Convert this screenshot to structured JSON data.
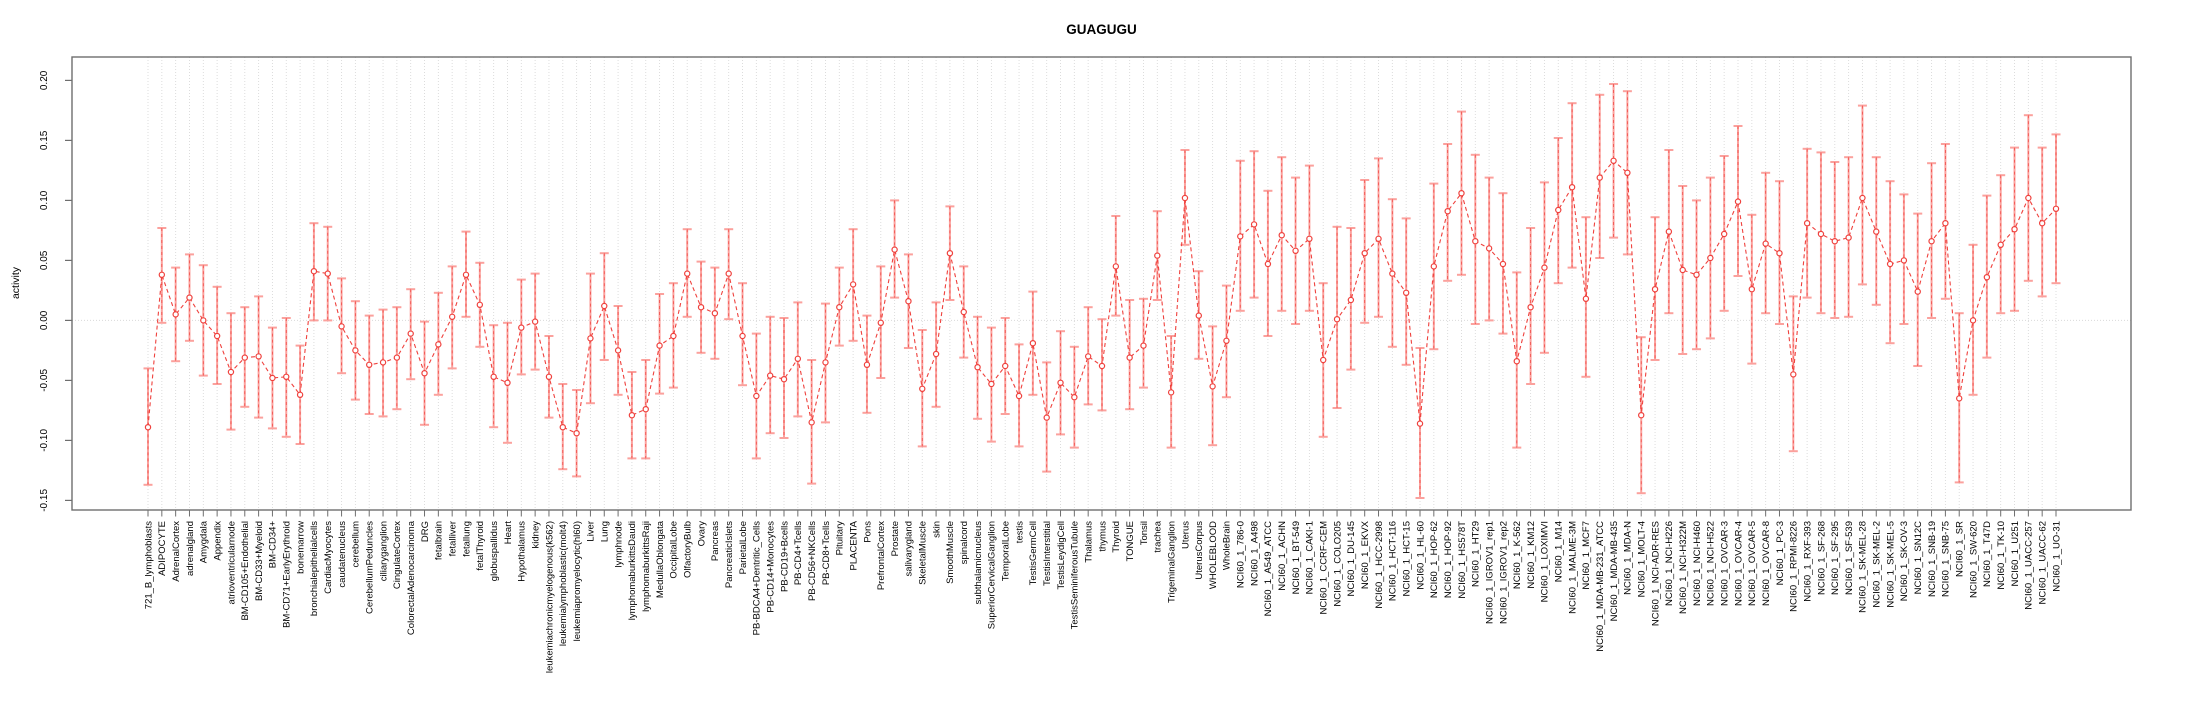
{
  "figure": {
    "title": "GUAGUGU",
    "ylabel": "activity"
  },
  "chart_data": {
    "type": "line",
    "subtype": "points-with-error-bars",
    "title": "GUAGUGU",
    "xlabel": "",
    "ylabel": "activity",
    "ylim": [
      -0.158,
      0.2195
    ],
    "yticks": [
      0.2,
      0.15,
      0.1,
      0.05,
      0.0,
      -0.05,
      -0.1,
      -0.15
    ],
    "ytick_labels": [
      "0.20",
      "0.15",
      "0.10",
      "0.05",
      "0.00",
      "-0.05",
      "-0.10",
      "-0.15"
    ],
    "grid": "vertical dotted gridline per category; dotted horizontal line at 0",
    "legend": "none",
    "marker": "open-circle",
    "line_style": "dashed",
    "colors": {
      "point": "#ef413d",
      "line": "#ef413d",
      "error_bar": "#fba19d",
      "grid": "#d9d9d9",
      "axis_box": "#6e6e6e",
      "text": "#000000"
    },
    "categories": [
      "721_B_lymphoblasts",
      "ADIPOCYTE",
      "AdrenalCortex",
      "adrenalgland",
      "Amygdala",
      "Appendix",
      "atrioventricularnode",
      "BM-CD105+Endothelial",
      "BM-CD33+Myeloid",
      "BM-CD34+",
      "BM-CD71+EarlyErythroid",
      "bonemarrow",
      "bronchialepithelialcells",
      "CardiacMyocytes",
      "caudatenucleus",
      "cerebellum",
      "CerebellumPeduncles",
      "ciliaryganglion",
      "CingulateCortex",
      "ColorectalAdenocarcinoma",
      "DRG",
      "fetalbrain",
      "fetalliver",
      "fetallung",
      "fetalThyroid",
      "globuspallidus",
      "Heart",
      "Hypothalamus",
      "kidney",
      "leukemiachronicmyelogenous(k562)",
      "leukemialymphoblastic(molt4)",
      "leukemiapromyelocytic(hl60)",
      "Liver",
      "Lung",
      "lymphnode",
      "lymphomaburkittsDaudi",
      "lymphomaburkittsRaji",
      "MedullaOblongata",
      "OccipitalLobe",
      "OlfactoryBulb",
      "Ovary",
      "Pancreas",
      "PancreaticIslets",
      "ParietalLobe",
      "PB-BDCA4+Dentritic_Cells",
      "PB-CD14+Monocytes",
      "PB-CD19+Bcells",
      "PB-CD4+Tcells",
      "PB-CD56+NKCells",
      "PB-CD8+Tcells",
      "Pituitary",
      "PLACENTA",
      "Pons",
      "PrefrontalCortex",
      "Prostate",
      "salivarygland",
      "SkeletalMuscle",
      "skin",
      "SmoothMuscle",
      "spinalcord",
      "subthalamicnucleus",
      "SuperiorCervicalGanglion",
      "TemporalLobe",
      "testis",
      "TestisGermCell",
      "TestisInterstitial",
      "TestisLeydigCell",
      "TestisSeminiferousTubule",
      "Thalamus",
      "thymus",
      "Thyroid",
      "TONGUE",
      "Tonsil",
      "trachea",
      "TrigeminalGanglion",
      "Uterus",
      "UterusCorpus",
      "WHOLEBLOOD",
      "WholeBrain",
      "NCI60_1_786-0",
      "NCI60_1_A498",
      "NCI60_1_A549_ATCC",
      "NCI60_1_ACHN",
      "NCI60_1_BT-549",
      "NCI60_1_CAKI-1",
      "NCI60_1_CCRF-CEM",
      "NCI60_1_COLO205",
      "NCI60_1_DU-145",
      "NCI60_1_EKVX",
      "NCI60_1_HCC-2998",
      "NCI60_1_HCT-116",
      "NCI60_1_HCT-15",
      "NCI60_1_HL-60",
      "NCI60_1_HOP-62",
      "NCI60_1_HOP-92",
      "NCI60_1_HS578T",
      "NCI60_1_HT29",
      "NCI60_1_IGROV1_rep1",
      "NCI60_1_IGROV1_rep2",
      "NCI60_1_K-562",
      "NCI60_1_KM12",
      "NCI60_1_LOXIMVI",
      "NCI60_1_M14",
      "NCI60_1_MALME-3M",
      "NCI60_1_MCF7",
      "NCI60_1_MDA-MB-231_ATCC",
      "NCI60_1_MDA-MB-435",
      "NCI60_1_MDA-N",
      "NCI60_1_MOLT-4",
      "NCI60_1_NCI-ADR-RES",
      "NCI60_1_NCI-H226",
      "NCI60_1_NCI-H322M",
      "NCI60_1_NCI-H460",
      "NCI60_1_NCI-H522",
      "NCI60_1_OVCAR-3",
      "NCI60_1_OVCAR-4",
      "NCI60_1_OVCAR-5",
      "NCI60_1_OVCAR-8",
      "NCI60_1_PC-3",
      "NCI60_1_RPMI-8226",
      "NCI60_1_RXF-393",
      "NCI60_1_SF-268",
      "NCI60_1_SF-295",
      "NCI60_1_SF-539",
      "NCI60_1_SK-MEL-28",
      "NCI60_1_SK-MEL-2",
      "NCI60_1_SK-MEL-5",
      "NCI60_1_SK-OV-3",
      "NCI60_1_SN12C",
      "NCI60_1_SNB-19",
      "NCI60_1_SNB-75",
      "NCI60_1_SR",
      "NCI60_1_SW-620",
      "NCI60_1_T47D",
      "NCI60_1_TK-10",
      "NCI60_1_U251",
      "NCI60_1_UACC-257",
      "NCI60_1_UACC-62",
      "NCI60_1_UO-31"
    ],
    "series": [
      {
        "name": "activity",
        "values": [
          -0.089,
          0.038,
          0.005,
          0.019,
          0.0,
          -0.013,
          -0.043,
          -0.031,
          -0.03,
          -0.048,
          -0.047,
          -0.062,
          0.041,
          0.039,
          -0.005,
          -0.025,
          -0.037,
          -0.035,
          -0.031,
          -0.011,
          -0.044,
          -0.02,
          0.003,
          0.038,
          0.013,
          -0.047,
          -0.052,
          -0.006,
          -0.001,
          -0.047,
          -0.089,
          -0.094,
          -0.015,
          0.012,
          -0.025,
          -0.079,
          -0.074,
          -0.021,
          -0.013,
          0.039,
          0.011,
          0.006,
          0.039,
          -0.013,
          -0.063,
          -0.046,
          -0.049,
          -0.032,
          -0.085,
          -0.035,
          0.011,
          0.03,
          -0.037,
          -0.002,
          0.059,
          0.016,
          -0.057,
          -0.028,
          0.056,
          0.007,
          -0.039,
          -0.053,
          -0.038,
          -0.063,
          -0.019,
          -0.081,
          -0.052,
          -0.064,
          -0.03,
          -0.038,
          0.045,
          -0.031,
          -0.021,
          0.054,
          -0.06,
          0.102,
          0.004,
          -0.055,
          -0.017,
          0.07,
          0.08,
          0.047,
          0.071,
          0.058,
          0.068,
          -0.033,
          0.001,
          0.017,
          0.056,
          0.068,
          0.039,
          0.023,
          -0.086,
          0.045,
          0.091,
          0.106,
          0.066,
          0.06,
          0.047,
          -0.034,
          0.011,
          0.044,
          0.092,
          0.111,
          0.018,
          0.119,
          0.133,
          0.123,
          -0.079,
          0.026,
          0.074,
          0.042,
          0.038,
          0.052,
          0.072,
          0.099,
          0.026,
          0.064,
          0.056,
          -0.045,
          0.081,
          0.072,
          0.066,
          0.069,
          0.102,
          0.074,
          0.047,
          0.05,
          0.024,
          0.066,
          0.081,
          -0.065,
          0.0,
          0.036,
          0.063,
          0.076,
          0.102,
          0.081,
          0.093
        ],
        "ci_low": [
          -0.137,
          -0.002,
          -0.034,
          -0.017,
          -0.046,
          -0.053,
          -0.091,
          -0.072,
          -0.081,
          -0.09,
          -0.097,
          -0.103,
          0.0,
          0.0,
          -0.044,
          -0.066,
          -0.078,
          -0.08,
          -0.074,
          -0.049,
          -0.087,
          -0.062,
          -0.04,
          0.003,
          -0.022,
          -0.089,
          -0.102,
          -0.045,
          -0.041,
          -0.081,
          -0.124,
          -0.13,
          -0.069,
          -0.033,
          -0.062,
          -0.115,
          -0.115,
          -0.061,
          -0.056,
          0.003,
          -0.027,
          -0.032,
          0.001,
          -0.054,
          -0.115,
          -0.094,
          -0.098,
          -0.08,
          -0.136,
          -0.085,
          -0.021,
          -0.017,
          -0.077,
          -0.048,
          0.019,
          -0.023,
          -0.105,
          -0.072,
          0.017,
          -0.031,
          -0.082,
          -0.101,
          -0.078,
          -0.105,
          -0.062,
          -0.126,
          -0.095,
          -0.106,
          -0.07,
          -0.075,
          0.004,
          -0.074,
          -0.056,
          0.017,
          -0.106,
          0.063,
          -0.032,
          -0.104,
          -0.064,
          0.008,
          0.019,
          -0.013,
          0.008,
          -0.003,
          0.008,
          -0.097,
          -0.073,
          -0.041,
          -0.002,
          0.003,
          -0.022,
          -0.037,
          -0.148,
          -0.024,
          0.033,
          0.038,
          -0.003,
          0.0,
          -0.011,
          -0.106,
          -0.053,
          -0.027,
          0.031,
          0.044,
          -0.047,
          0.052,
          0.069,
          0.055,
          -0.144,
          -0.033,
          0.006,
          -0.028,
          -0.024,
          -0.015,
          0.008,
          0.037,
          -0.036,
          0.006,
          -0.003,
          -0.109,
          0.019,
          0.006,
          0.002,
          0.003,
          0.03,
          0.013,
          -0.019,
          -0.003,
          -0.038,
          0.002,
          0.018,
          -0.135,
          -0.062,
          -0.031,
          0.006,
          0.008,
          0.033,
          0.02,
          0.031
        ],
        "ci_high": [
          -0.04,
          0.077,
          0.044,
          0.055,
          0.046,
          0.028,
          0.006,
          0.011,
          0.02,
          -0.006,
          0.002,
          -0.021,
          0.081,
          0.078,
          0.035,
          0.016,
          0.004,
          0.009,
          0.011,
          0.026,
          -0.001,
          0.023,
          0.045,
          0.074,
          0.048,
          -0.004,
          -0.002,
          0.034,
          0.039,
          -0.013,
          -0.053,
          -0.058,
          0.039,
          0.056,
          0.012,
          -0.043,
          -0.033,
          0.022,
          0.031,
          0.076,
          0.049,
          0.044,
          0.076,
          0.031,
          -0.011,
          0.003,
          0.002,
          0.015,
          -0.033,
          0.014,
          0.044,
          0.076,
          0.004,
          0.045,
          0.1,
          0.055,
          -0.008,
          0.015,
          0.095,
          0.045,
          0.003,
          -0.006,
          0.002,
          -0.02,
          0.024,
          -0.035,
          -0.009,
          -0.022,
          0.011,
          0.001,
          0.087,
          0.017,
          0.018,
          0.091,
          -0.013,
          0.142,
          0.041,
          -0.005,
          0.029,
          0.133,
          0.141,
          0.108,
          0.136,
          0.119,
          0.129,
          0.031,
          0.078,
          0.077,
          0.117,
          0.135,
          0.101,
          0.085,
          -0.023,
          0.114,
          0.147,
          0.174,
          0.138,
          0.119,
          0.106,
          0.04,
          0.077,
          0.115,
          0.152,
          0.181,
          0.086,
          0.188,
          0.197,
          0.191,
          -0.014,
          0.086,
          0.142,
          0.112,
          0.1,
          0.119,
          0.137,
          0.162,
          0.088,
          0.123,
          0.116,
          0.02,
          0.143,
          0.14,
          0.132,
          0.136,
          0.179,
          0.136,
          0.116,
          0.105,
          0.089,
          0.131,
          0.147,
          0.006,
          0.063,
          0.104,
          0.121,
          0.144,
          0.171,
          0.144,
          0.155
        ]
      }
    ]
  }
}
